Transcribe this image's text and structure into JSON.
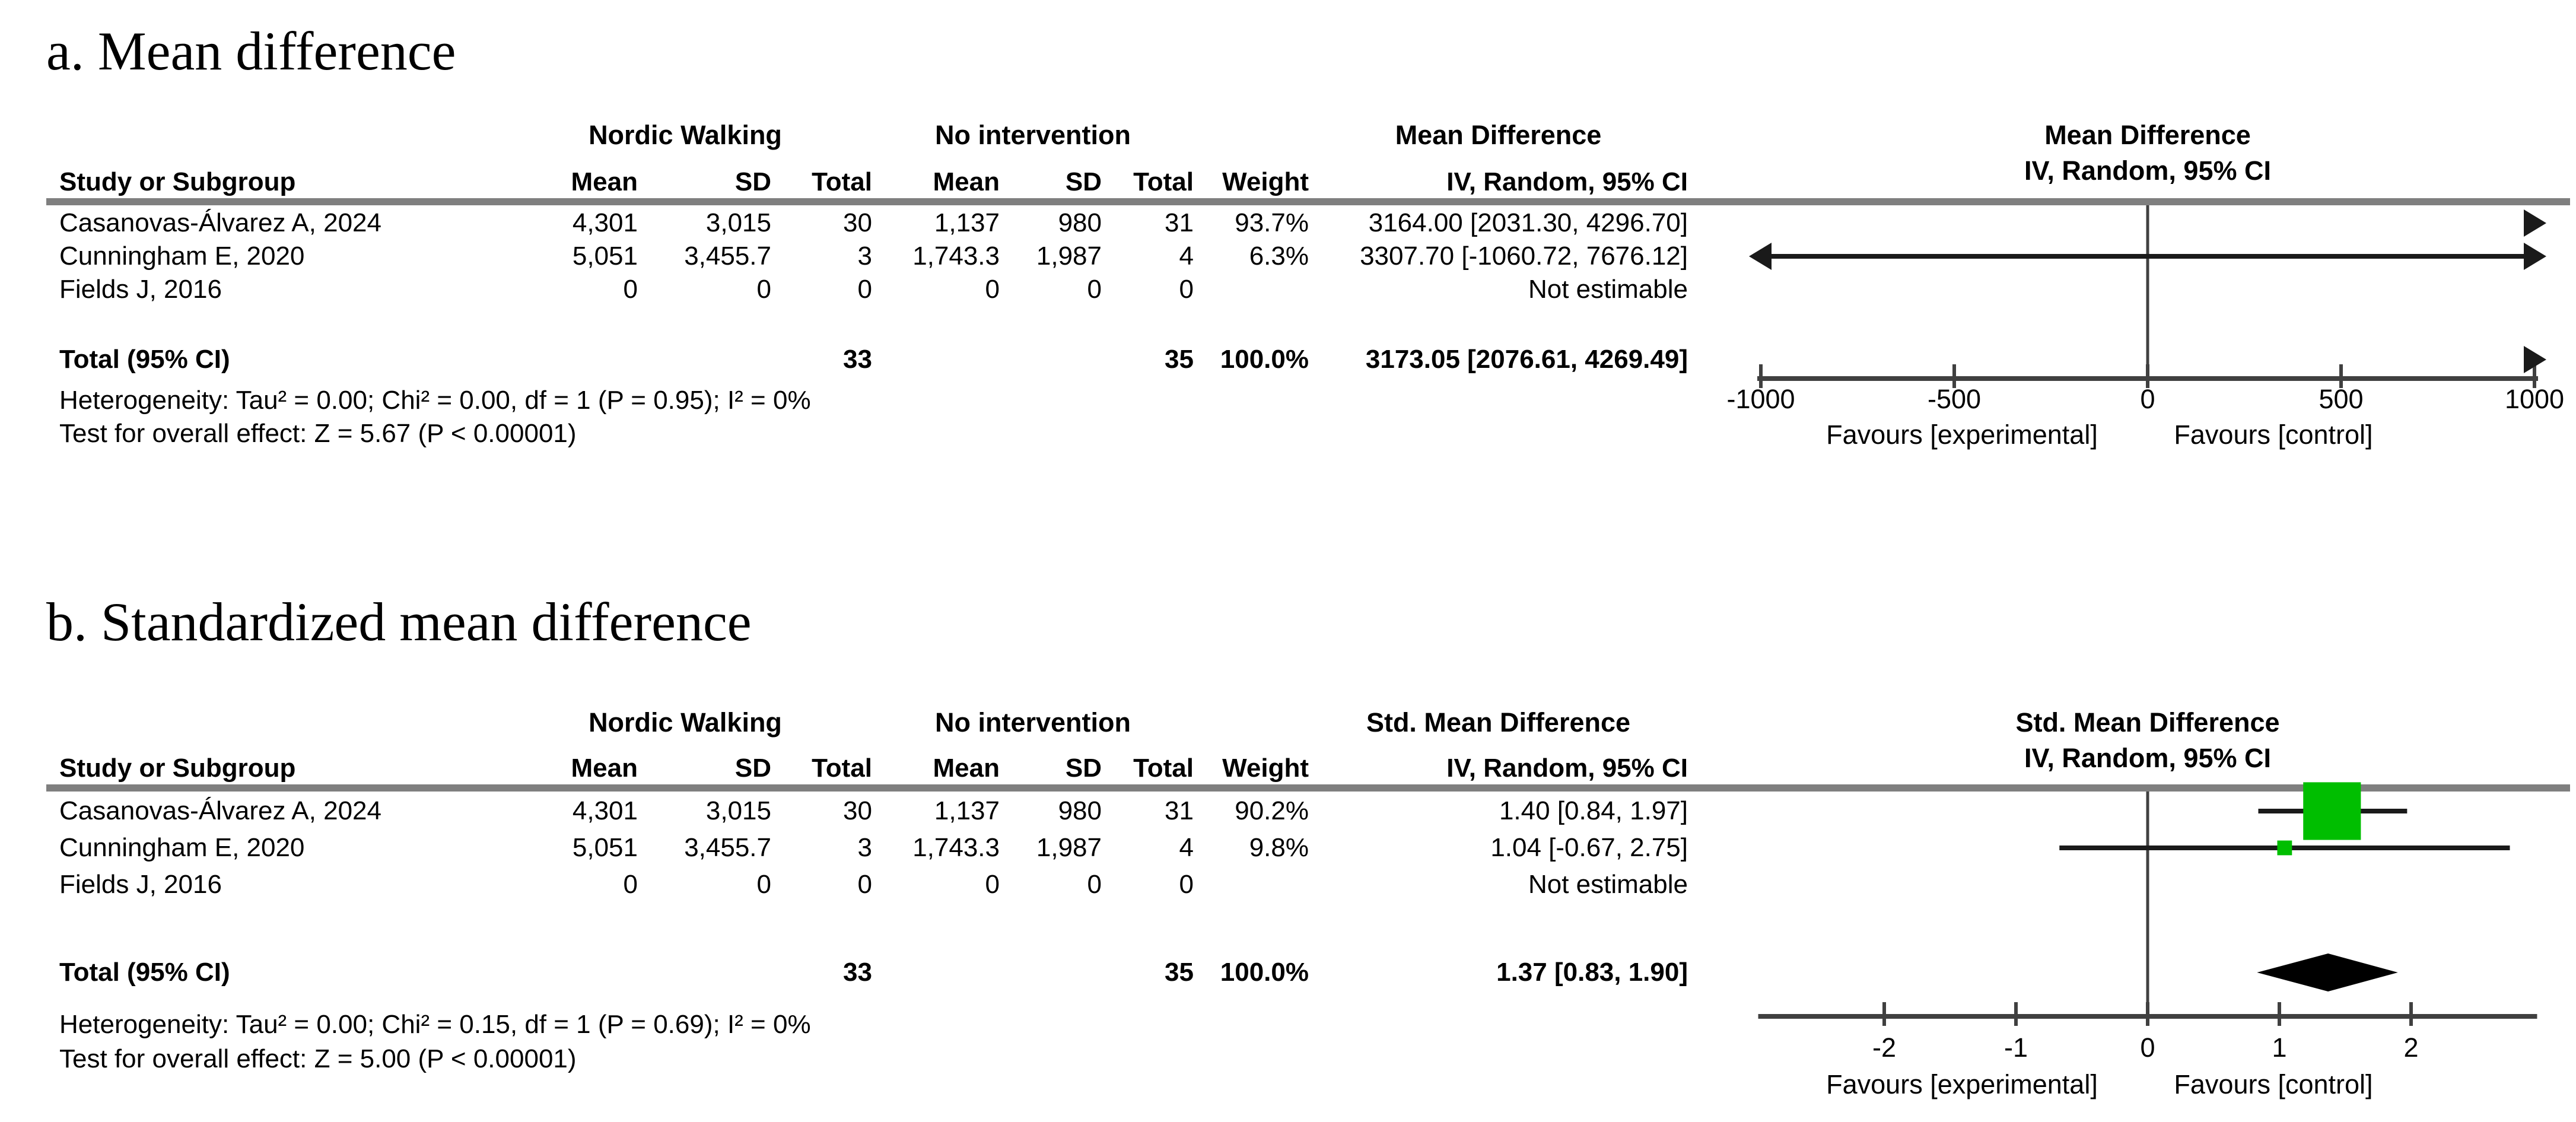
{
  "colors": {
    "square_green": "#00BE00",
    "diamond_black": "#000000",
    "rule_gray": "#7f7f7f",
    "line_gray": "#404040"
  },
  "shared": {
    "study_col": "Study or Subgroup",
    "mean": "Mean",
    "sd": "SD",
    "total": "Total",
    "weight": "Weight",
    "method": "IV, Random, 95% CI",
    "total_label": "Total (95% CI)",
    "favours_left": "Favours [experimental]",
    "favours_right": "Favours [control]"
  },
  "panels": [
    {
      "id": "a",
      "title": "a. Mean difference",
      "group1": "Nordic Walking",
      "group2": "No intervention",
      "effect": "Mean Difference",
      "studies": [
        {
          "name": "Casanovas-Álvarez A, 2024",
          "mean1": "4,301",
          "sd1": "3,015",
          "total1": "30",
          "mean2": "1,137",
          "sd2": "980",
          "total2": "31",
          "weight": "93.7%",
          "ci": "3164.00 [2031.30, 4296.70]"
        },
        {
          "name": "Cunningham E, 2020",
          "mean1": "5,051",
          "sd1": "3,455.7",
          "total1": "3",
          "mean2": "1,743.3",
          "sd2": "1,987",
          "total2": "4",
          "weight": "6.3%",
          "ci": "3307.70 [-1060.72, 7676.12]"
        },
        {
          "name": "Fields J, 2016",
          "mean1": "0",
          "sd1": "0",
          "total1": "0",
          "mean2": "0",
          "sd2": "0",
          "total2": "0",
          "weight": "",
          "ci": "Not estimable"
        }
      ],
      "total": {
        "total1": "33",
        "total2": "35",
        "weight": "100.0%",
        "ci": "3173.05 [2076.61, 4269.49]"
      },
      "heterogeneity": "Heterogeneity: Tau² = 0.00; Chi² = 0.00, df = 1 (P = 0.95); I² = 0%",
      "overall": "Test for overall effect: Z = 5.67 (P < 0.00001)"
    },
    {
      "id": "b",
      "title": "b. Standardized mean difference",
      "group1": "Nordic Walking",
      "group2": "No intervention",
      "effect": "Std. Mean Difference",
      "studies": [
        {
          "name": "Casanovas-Álvarez A, 2024",
          "mean1": "4,301",
          "sd1": "3,015",
          "total1": "30",
          "mean2": "1,137",
          "sd2": "980",
          "total2": "31",
          "weight": "90.2%",
          "ci": "1.40 [0.84, 1.97]"
        },
        {
          "name": "Cunningham E, 2020",
          "mean1": "5,051",
          "sd1": "3,455.7",
          "total1": "3",
          "mean2": "1,743.3",
          "sd2": "1,987",
          "total2": "4",
          "weight": "9.8%",
          "ci": "1.04 [-0.67, 2.75]"
        },
        {
          "name": "Fields J, 2016",
          "mean1": "0",
          "sd1": "0",
          "total1": "0",
          "mean2": "0",
          "sd2": "0",
          "total2": "0",
          "weight": "",
          "ci": "Not estimable"
        }
      ],
      "total": {
        "total1": "33",
        "total2": "35",
        "weight": "100.0%",
        "ci": "1.37 [0.83, 1.90]"
      },
      "heterogeneity": "Heterogeneity: Tau² = 0.00; Chi² = 0.15, df = 1 (P = 0.69); I² = 0%",
      "overall": "Test for overall effect: Z = 5.00 (P < 0.00001)"
    }
  ],
  "chart_data": [
    {
      "type": "forest",
      "panel": "a",
      "title": "Mean difference",
      "effect_measure": "Mean Difference",
      "model": "IV, Random, 95% CI",
      "axis": {
        "min": -1000,
        "max": 1000,
        "ticks": [
          -1000,
          -500,
          0,
          500,
          1000
        ],
        "tick_labels": [
          "-1000",
          "-500",
          "0",
          "500",
          "1000"
        ],
        "label_left": "Favours [experimental]",
        "label_right": "Favours [control]"
      },
      "rows": [
        {
          "name": "Casanovas-Álvarez A, 2024",
          "est": 3164.0,
          "low": 2031.3,
          "high": 4296.7,
          "weight_pct": 93.7
        },
        {
          "name": "Cunningham E, 2020",
          "est": 3307.7,
          "low": -1060.72,
          "high": 7676.12,
          "weight_pct": 6.3
        },
        {
          "name": "Fields J, 2016",
          "est": null,
          "low": null,
          "high": null,
          "weight_pct": null
        }
      ],
      "total": {
        "est": 3173.05,
        "low": 2076.61,
        "high": 4269.49,
        "weight_pct": 100.0
      },
      "heterogeneity": {
        "tau2": 0.0,
        "chi2": 0.0,
        "df": 1,
        "p": 0.95,
        "i2_pct": 0
      },
      "overall_effect": {
        "z": 5.67,
        "p": "< 0.00001"
      }
    },
    {
      "type": "forest",
      "panel": "b",
      "title": "Standardized mean difference",
      "effect_measure": "Std. Mean Difference",
      "model": "IV, Random, 95% CI",
      "axis": {
        "min": -2.93,
        "max": 2.93,
        "ticks": [
          -2,
          -1,
          0,
          1,
          2
        ],
        "tick_labels": [
          "-2",
          "-1",
          "0",
          "1",
          "2"
        ],
        "label_left": "Favours [experimental]",
        "label_right": "Favours [control]"
      },
      "rows": [
        {
          "name": "Casanovas-Álvarez A, 2024",
          "est": 1.4,
          "low": 0.84,
          "high": 1.97,
          "weight_pct": 90.2
        },
        {
          "name": "Cunningham E, 2020",
          "est": 1.04,
          "low": -0.67,
          "high": 2.75,
          "weight_pct": 9.8
        },
        {
          "name": "Fields J, 2016",
          "est": null,
          "low": null,
          "high": null,
          "weight_pct": null
        }
      ],
      "total": {
        "est": 1.37,
        "low": 0.83,
        "high": 1.9,
        "weight_pct": 100.0
      },
      "heterogeneity": {
        "tau2": 0.0,
        "chi2": 0.15,
        "df": 1,
        "p": 0.69,
        "i2_pct": 0
      },
      "overall_effect": {
        "z": 5.0,
        "p": "< 0.00001"
      }
    }
  ]
}
